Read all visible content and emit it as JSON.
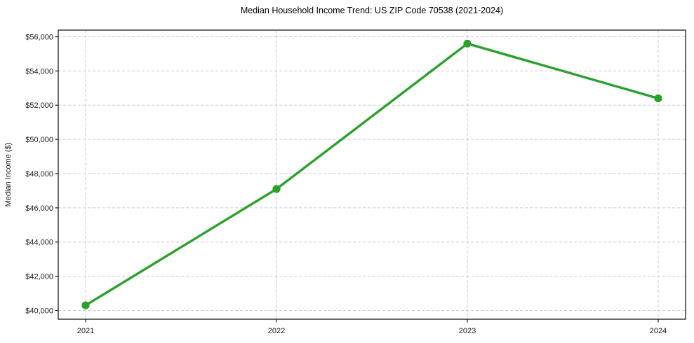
{
  "chart_data": {
    "type": "line",
    "title": "Median Household Income Trend: US ZIP Code 70538 (2021-2024)",
    "categories": [
      "2021",
      "2022",
      "2023",
      "2024"
    ],
    "values": [
      40300,
      47100,
      55600,
      52400
    ],
    "xlabel": "",
    "ylabel": "Median Income ($)",
    "ylim": [
      39490,
      56390
    ],
    "ytick_values": [
      40000,
      42000,
      44000,
      46000,
      48000,
      50000,
      52000,
      54000,
      56000
    ],
    "ytick_labels": [
      "$40,000",
      "$42,000",
      "$44,000",
      "$46,000",
      "$48,000",
      "$50,000",
      "$52,000",
      "$54,000",
      "$56,000"
    ],
    "grid": "dashed-both",
    "legend": "none",
    "line_color": "#2ca02c",
    "marker": "circle",
    "marker_color": "#2ca02c",
    "grid_color": "#cccccc",
    "axis_color": "#1a1a1a"
  }
}
